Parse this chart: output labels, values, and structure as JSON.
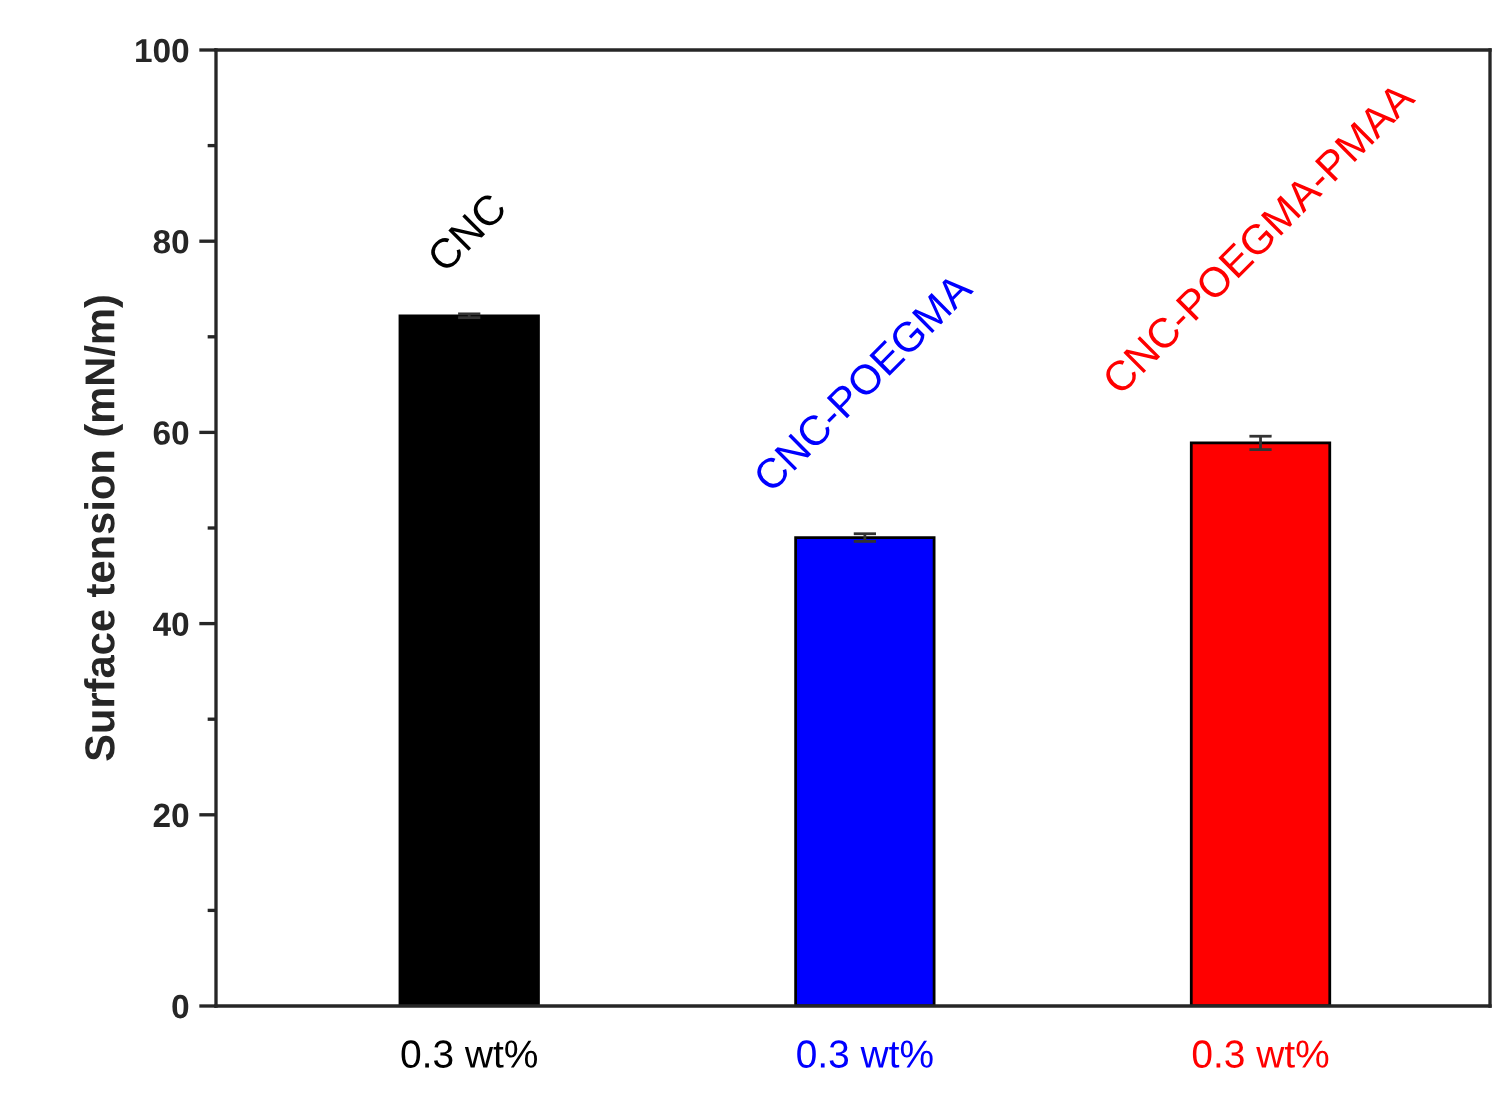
{
  "chart_data": {
    "type": "bar",
    "ylabel": "Surface tension (mN/m)",
    "categories": [
      "0.3 wt%",
      "0.3 wt%",
      "0.3 wt%"
    ],
    "values": [
      72.2,
      49.0,
      58.9
    ],
    "errors": [
      0.2,
      0.4,
      0.7
    ],
    "colors": [
      "#000000",
      "#0000ff",
      "#ff0000"
    ],
    "annotations": [
      "CNC",
      "CNC-POEGMA",
      "CNC-POEGMA-PMAA"
    ],
    "ylim": [
      0,
      100
    ],
    "yticks": [
      0,
      {
        "value": 10,
        "label": null
      },
      20,
      {
        "value": 30,
        "label": null
      },
      40,
      {
        "value": 50,
        "label": null
      },
      60,
      {
        "value": 70,
        "label": null
      },
      80,
      {
        "value": 90,
        "label": null
      },
      100
    ],
    "grid": false,
    "legend": false
  }
}
